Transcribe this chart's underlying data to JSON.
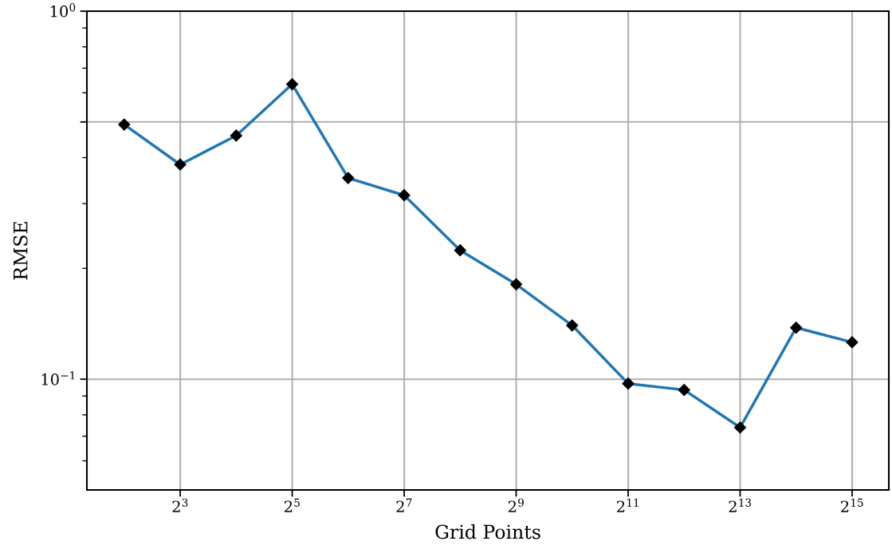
{
  "chart_data": {
    "type": "line",
    "xlabel": "Grid Points",
    "ylabel": "RMSE",
    "log": "xy",
    "grid": true,
    "marker": "diamond",
    "line_style": "solid",
    "x": [
      4,
      8,
      16,
      32,
      64,
      128,
      256,
      512,
      1024,
      2048,
      4096,
      8192,
      16384,
      32768
    ],
    "series": [
      {
        "color": "#1f77b4",
        "values": [
          0.492,
          0.383,
          0.459,
          0.633,
          0.352,
          0.316,
          0.224,
          0.181,
          0.14,
          0.0973,
          0.0935,
          0.0739,
          0.138,
          0.126
        ]
      }
    ],
    "xlim": [
      2.52,
      51600
    ],
    "xticks": [
      {
        "value": 8,
        "label": "2$^{3}$"
      },
      {
        "value": 32,
        "label": "2$^{5}$"
      },
      {
        "value": 128,
        "label": "2$^{7}$"
      },
      {
        "value": 512,
        "label": "2$^{9}$"
      },
      {
        "value": 2048,
        "label": "2$^{11}$"
      },
      {
        "value": 8192,
        "label": "2$^{13}$"
      },
      {
        "value": 32768,
        "label": "2$^{15}$"
      }
    ],
    "ylim": [
      0.05,
      1
    ],
    "yticks": [
      {
        "value": 0.1,
        "label": "10$^{−1}$"
      },
      {
        "value": 0.5,
        "label": null
      },
      {
        "value": 1,
        "label": "10$^{0}$"
      }
    ]
  }
}
